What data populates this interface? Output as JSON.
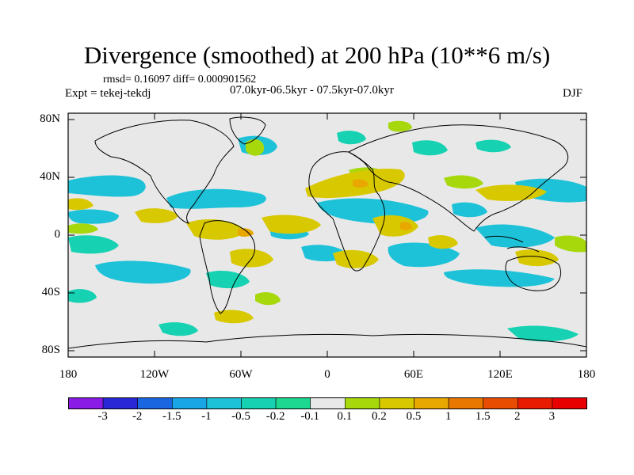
{
  "title": "Divergence (smoothed) at 200 hPa (10**6 m/s)",
  "stats": "rmsd= 0.16097 diff= 0.000901562",
  "experiment": "Expt = tekej-tekdj",
  "period": "07.0kyr-06.5kyr - 07.5kyr-07.0kyr",
  "season": "DJF",
  "lat_labels": [
    "80N",
    "40N",
    "0",
    "40S",
    "80S"
  ],
  "lon_labels": [
    "180",
    "120W",
    "60W",
    "0",
    "60E",
    "120E",
    "180"
  ],
  "colorbar": {
    "labels": [
      "-3",
      "-2",
      "-1.5",
      "-1",
      "-0.5",
      "-0.2",
      "-0.1",
      "0.1",
      "0.2",
      "0.5",
      "1",
      "1.5",
      "2",
      "3"
    ],
    "colors": [
      "#8a1ae6",
      "#2a28d6",
      "#1a66e0",
      "#19a6e6",
      "#1ec2d8",
      "#16d2b2",
      "#1dd890",
      "#e8e8e8",
      "#a6d80c",
      "#d8c800",
      "#e8a800",
      "#e87800",
      "#e84c00",
      "#e81c00",
      "#e80000"
    ]
  },
  "map_data": {
    "field": "200 hPa divergence difference (smoothed)",
    "palette_min": "#1dd890",
    "palette_weak_pos": "#a6d80c",
    "palette_pos": "#d8c800",
    "palette_neutral": "#e8e8e8"
  }
}
